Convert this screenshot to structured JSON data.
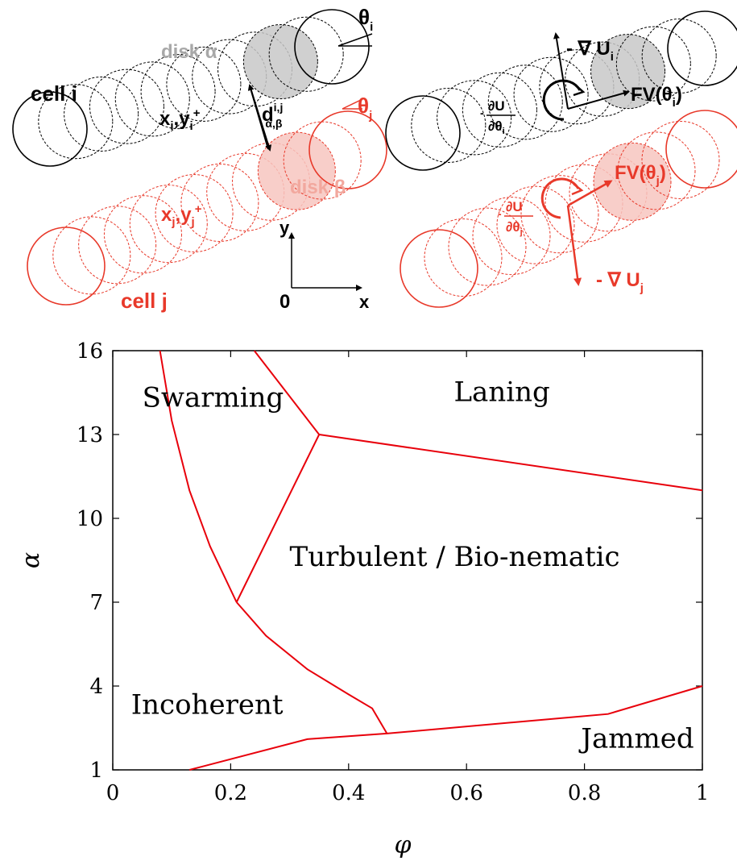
{
  "schematic": {
    "left": {
      "cell_i_label": "cell i",
      "cell_j_label": "cell j",
      "disk_alpha_label": "disk α",
      "disk_beta_label": "disk β",
      "pos_i": "x",
      "pos_i_sub": "i",
      "pos_i_y": ",y",
      "pos_i_sup": "+",
      "pos_i_ysub": "i",
      "pos_j": "x",
      "pos_j_sub": "j",
      "pos_j_y": ",y",
      "pos_j_sup": "+",
      "pos_j_ysub": "j",
      "dist_label": "d",
      "dist_sup": "i,j",
      "dist_sub": "α,β",
      "theta_i": "θ",
      "theta_i_sub": "i",
      "theta_j": "θ",
      "theta_j_sub": "j",
      "axis_y": "y",
      "axis_x": "x",
      "axis_origin": "0"
    },
    "right": {
      "grad_i": "- ∇ U",
      "grad_i_sub": "i",
      "grad_j": "- ∇ U",
      "grad_j_sub": "j",
      "force_i": "FV(θ",
      "force_i_sub": "i",
      "force_i_close": ")",
      "force_j": "FV(θ",
      "force_j_sub": "j",
      "force_j_close": ")",
      "torque_num": "∂U",
      "torque_den_i": "∂θ",
      "torque_den_i_sub": "i",
      "torque_den_j": "∂θ",
      "torque_den_j_sub": "j",
      "torque_sign": "-"
    },
    "colors": {
      "cell_i": "#000000",
      "cell_j": "#e8392a",
      "disk_alpha": "#c8c8c8",
      "disk_beta": "#f7c6bf"
    }
  },
  "chart_data": {
    "type": "phase-diagram",
    "xlabel": "φ",
    "ylabel": "α",
    "xlim": [
      0,
      1
    ],
    "ylim": [
      1,
      16
    ],
    "xticks": [
      0,
      0.2,
      0.4,
      0.6,
      0.8,
      1
    ],
    "xtick_labels": [
      "0",
      "0.2",
      "0.4",
      "0.6",
      "0.8",
      "1"
    ],
    "yticks": [
      1,
      4,
      7,
      10,
      13,
      16
    ],
    "ytick_labels": [
      "1",
      "4",
      "7",
      "10",
      "13",
      "16"
    ],
    "boundary_color": "#e8000b",
    "boundaries": [
      {
        "name": "incoherent-swarming",
        "points": [
          [
            0.08,
            16
          ],
          [
            0.1,
            13.5
          ],
          [
            0.13,
            11
          ],
          [
            0.165,
            9
          ],
          [
            0.21,
            7
          ]
        ]
      },
      {
        "name": "incoherent-turbulent",
        "points": [
          [
            0.21,
            7
          ],
          [
            0.26,
            5.8
          ],
          [
            0.33,
            4.6
          ],
          [
            0.4,
            3.7
          ],
          [
            0.44,
            3.2
          ],
          [
            0.465,
            2.3
          ]
        ]
      },
      {
        "name": "swarming-turbulent",
        "points": [
          [
            0.21,
            7
          ],
          [
            0.35,
            13
          ]
        ]
      },
      {
        "name": "swarming-laning",
        "points": [
          [
            0.24,
            16
          ],
          [
            0.35,
            13
          ]
        ]
      },
      {
        "name": "laning-turbulent",
        "points": [
          [
            0.35,
            13
          ],
          [
            1.0,
            11
          ]
        ]
      },
      {
        "name": "jammed-boundary",
        "points": [
          [
            0.13,
            1
          ],
          [
            0.33,
            2.1
          ],
          [
            0.465,
            2.3
          ],
          [
            0.84,
            3.0
          ],
          [
            1.0,
            4.0
          ]
        ]
      }
    ],
    "regions": [
      {
        "label": "Swarming",
        "phi": 0.17,
        "alpha": 14
      },
      {
        "label": "Laning",
        "phi": 0.66,
        "alpha": 14.2
      },
      {
        "label": "Turbulent / Bio-nematic",
        "phi": 0.58,
        "alpha": 8.3
      },
      {
        "label": "Incoherent",
        "phi": 0.16,
        "alpha": 3.0
      },
      {
        "label": "Jammed",
        "phi": 0.89,
        "alpha": 1.8
      }
    ]
  }
}
